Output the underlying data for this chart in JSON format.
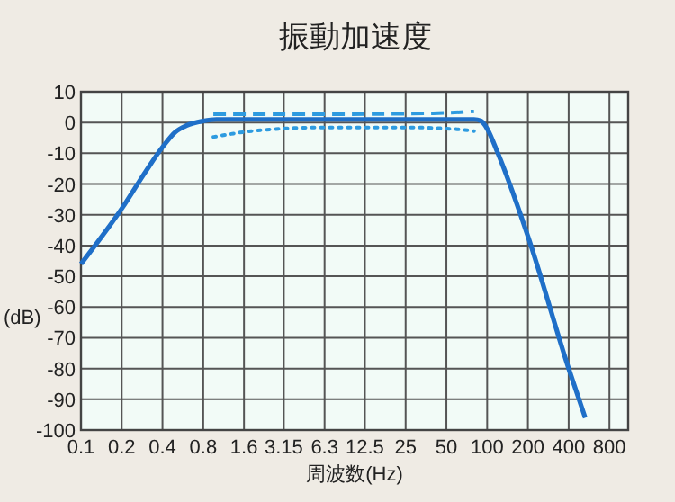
{
  "chart_data": {
    "type": "line",
    "title": "振動加速度",
    "xlabel": "周波数(Hz)",
    "ylabel": "(dB)",
    "log": "x",
    "grid": true,
    "marker": "none",
    "xlim": [
      0.1,
      1100
    ],
    "xticks": [
      0.1,
      0.2,
      0.4,
      0.8,
      1.6,
      3.15,
      6.3,
      12.5,
      25,
      50,
      100,
      200,
      400,
      800
    ],
    "ylim": [
      -100,
      10
    ],
    "yticks": [
      10,
      0,
      -10,
      -20,
      -30,
      -40,
      -50,
      -60,
      -70,
      -80,
      -90,
      -100
    ],
    "series": [
      {
        "color": "#1f6fc8",
        "line_style": "solid",
        "x": [
          0.1,
          0.2,
          0.3,
          0.4,
          0.5,
          0.6,
          0.8,
          1.0,
          80,
          90,
          100,
          120,
          200,
          400,
          530
        ],
        "values": [
          -46,
          -28,
          -16,
          -8,
          -3,
          -1,
          0.5,
          1,
          1,
          0.5,
          -2,
          -10,
          -37,
          -80,
          -96
        ]
      },
      {
        "color": "#2e9be0",
        "line_style": "dashed",
        "x": [
          0.95,
          6.3,
          40,
          80
        ],
        "values": [
          2.7,
          2.7,
          3,
          3.6
        ]
      },
      {
        "color": "#2e9be0",
        "line_style": "dotted",
        "x": [
          0.95,
          2,
          6.3,
          25,
          60,
          80
        ],
        "values": [
          -4.7,
          -2.6,
          -1.6,
          -1.6,
          -2.2,
          -2.8
        ]
      }
    ]
  }
}
